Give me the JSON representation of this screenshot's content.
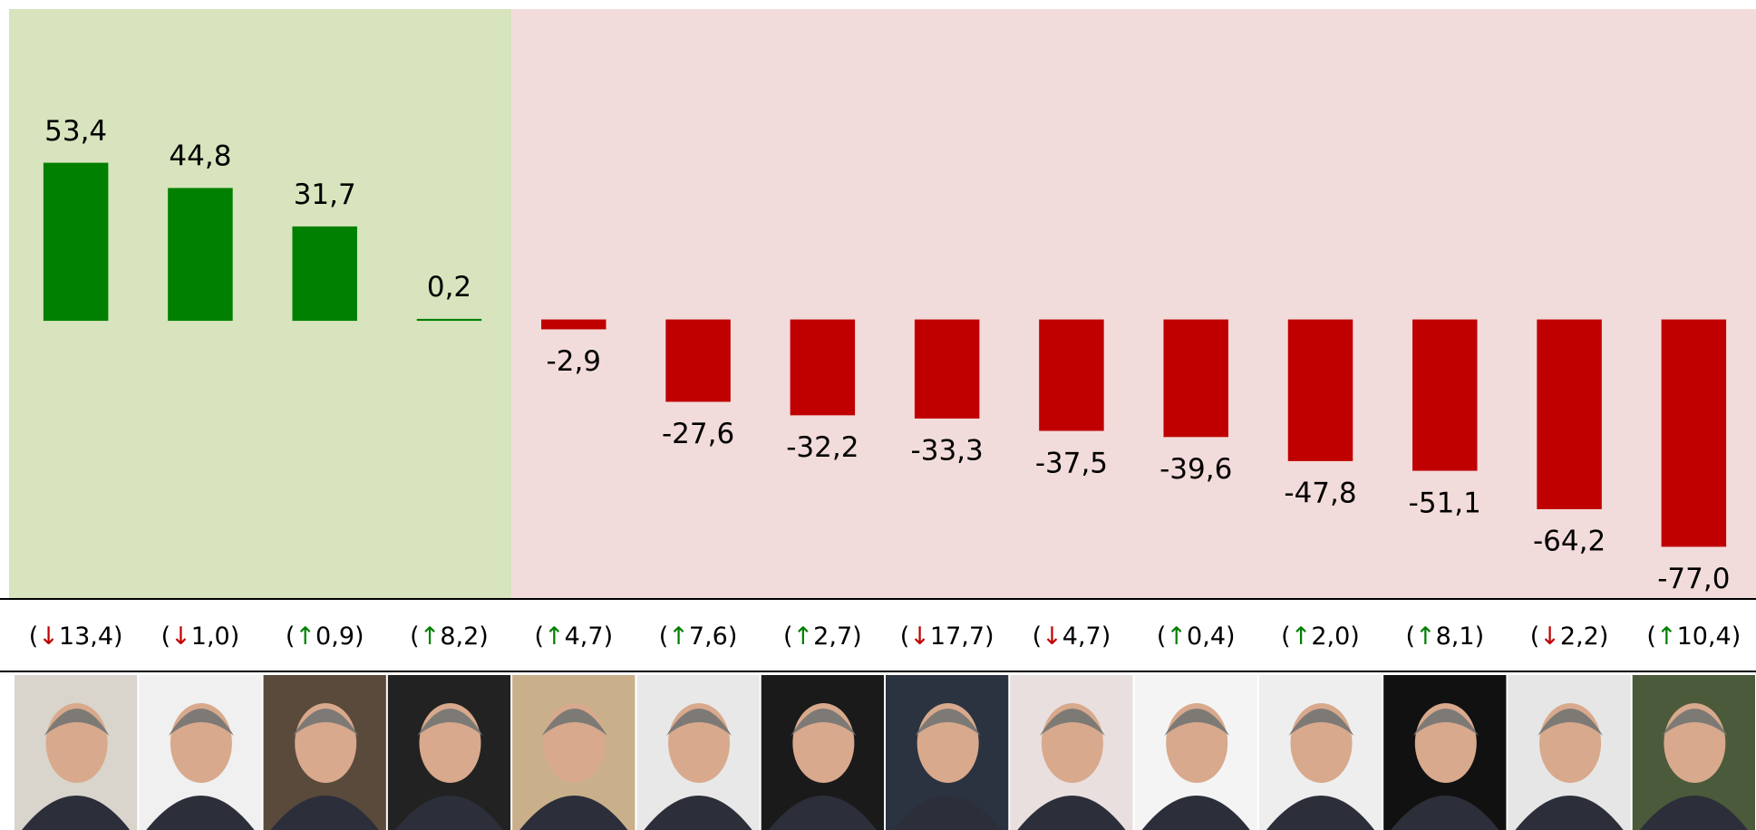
{
  "chart_data": {
    "type": "bar",
    "categories": [
      null,
      null,
      null,
      null,
      null,
      null,
      null,
      null,
      null,
      null,
      null,
      null,
      null,
      null
    ],
    "values": [
      53.4,
      44.8,
      31.7,
      0.2,
      -2.9,
      -27.6,
      -32.2,
      -33.3,
      -37.5,
      -39.6,
      -47.8,
      -51.1,
      -64.2,
      -77.0
    ],
    "value_labels": [
      "53,4",
      "44,8",
      "31,7",
      "0,2",
      "-2,9",
      "-27,6",
      "-32,2",
      "-33,3",
      "-37,5",
      "-39,6",
      "-47,8",
      "-51,1",
      "-64,2",
      "-77,0"
    ],
    "changes": [
      "(↓13,4)",
      "(↓1,0)",
      "(↑0,9)",
      "(↑8,2)",
      "(↑4,7)",
      "(↑7,6)",
      "(↑2,7)",
      "(↓17,7)",
      "(↓4,7)",
      "(↑0,4)",
      "(↑2,0)",
      "(↑8,1)",
      "(↓2,2)",
      "(↑10,4)"
    ],
    "positive_color": "#008000",
    "negative_color": "#c00000",
    "positive_background": "#d7e4bd",
    "negative_background": "#f2dcdb",
    "ylim": [
      -95,
      106
    ]
  }
}
